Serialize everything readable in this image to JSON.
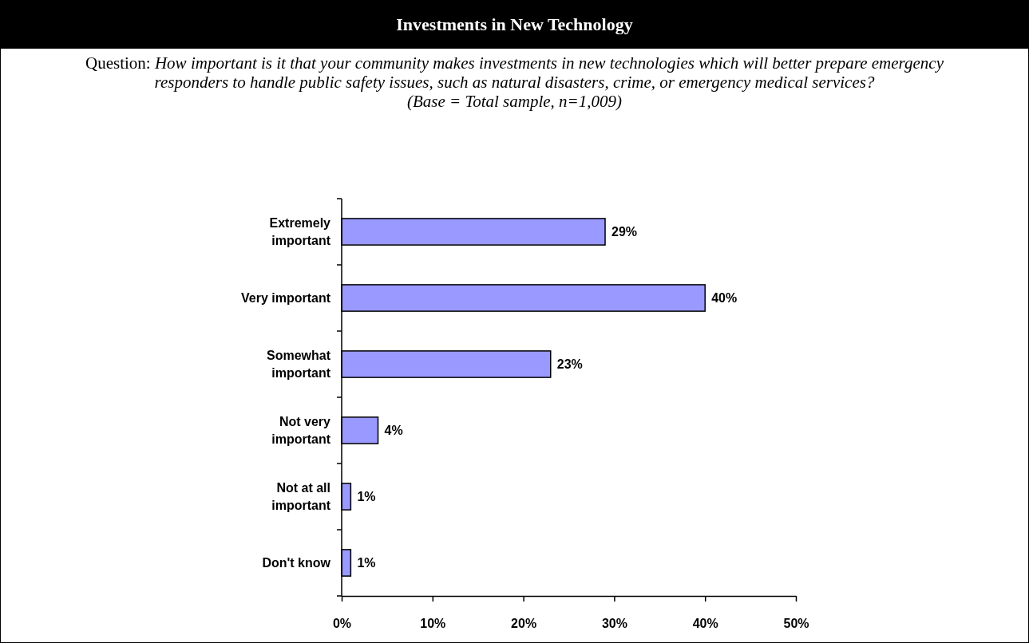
{
  "chart_data": {
    "type": "bar",
    "orientation": "horizontal",
    "title": "Investments in New Technology",
    "subtitle": "Question: How important is it that your community makes investments in new technologies which will better prepare emergency responders to handle public safety issues, such as natural disasters, crime, or emergency medical services?",
    "annotations": [
      "(Base = Total sample, n=1,009)"
    ],
    "categories": [
      "Extremely important",
      "Very important",
      "Somewhat important",
      "Not very important",
      "Not at all important",
      "Don't know"
    ],
    "values": [
      29,
      40,
      23,
      4,
      1,
      1
    ],
    "color": "#9999ff",
    "xlim": [
      0,
      50
    ],
    "xticks": [
      {
        "value": 0,
        "label": "0%"
      },
      {
        "value": 10,
        "label": "10%"
      },
      {
        "value": 20,
        "label": "20%"
      },
      {
        "value": 30,
        "label": "30%"
      },
      {
        "value": 40,
        "label": "40%"
      },
      {
        "value": 50,
        "label": "50%"
      }
    ],
    "value_labels": [
      "29%",
      "40%",
      "23%",
      "4%",
      "1%",
      "1%"
    ],
    "grid": false
  }
}
